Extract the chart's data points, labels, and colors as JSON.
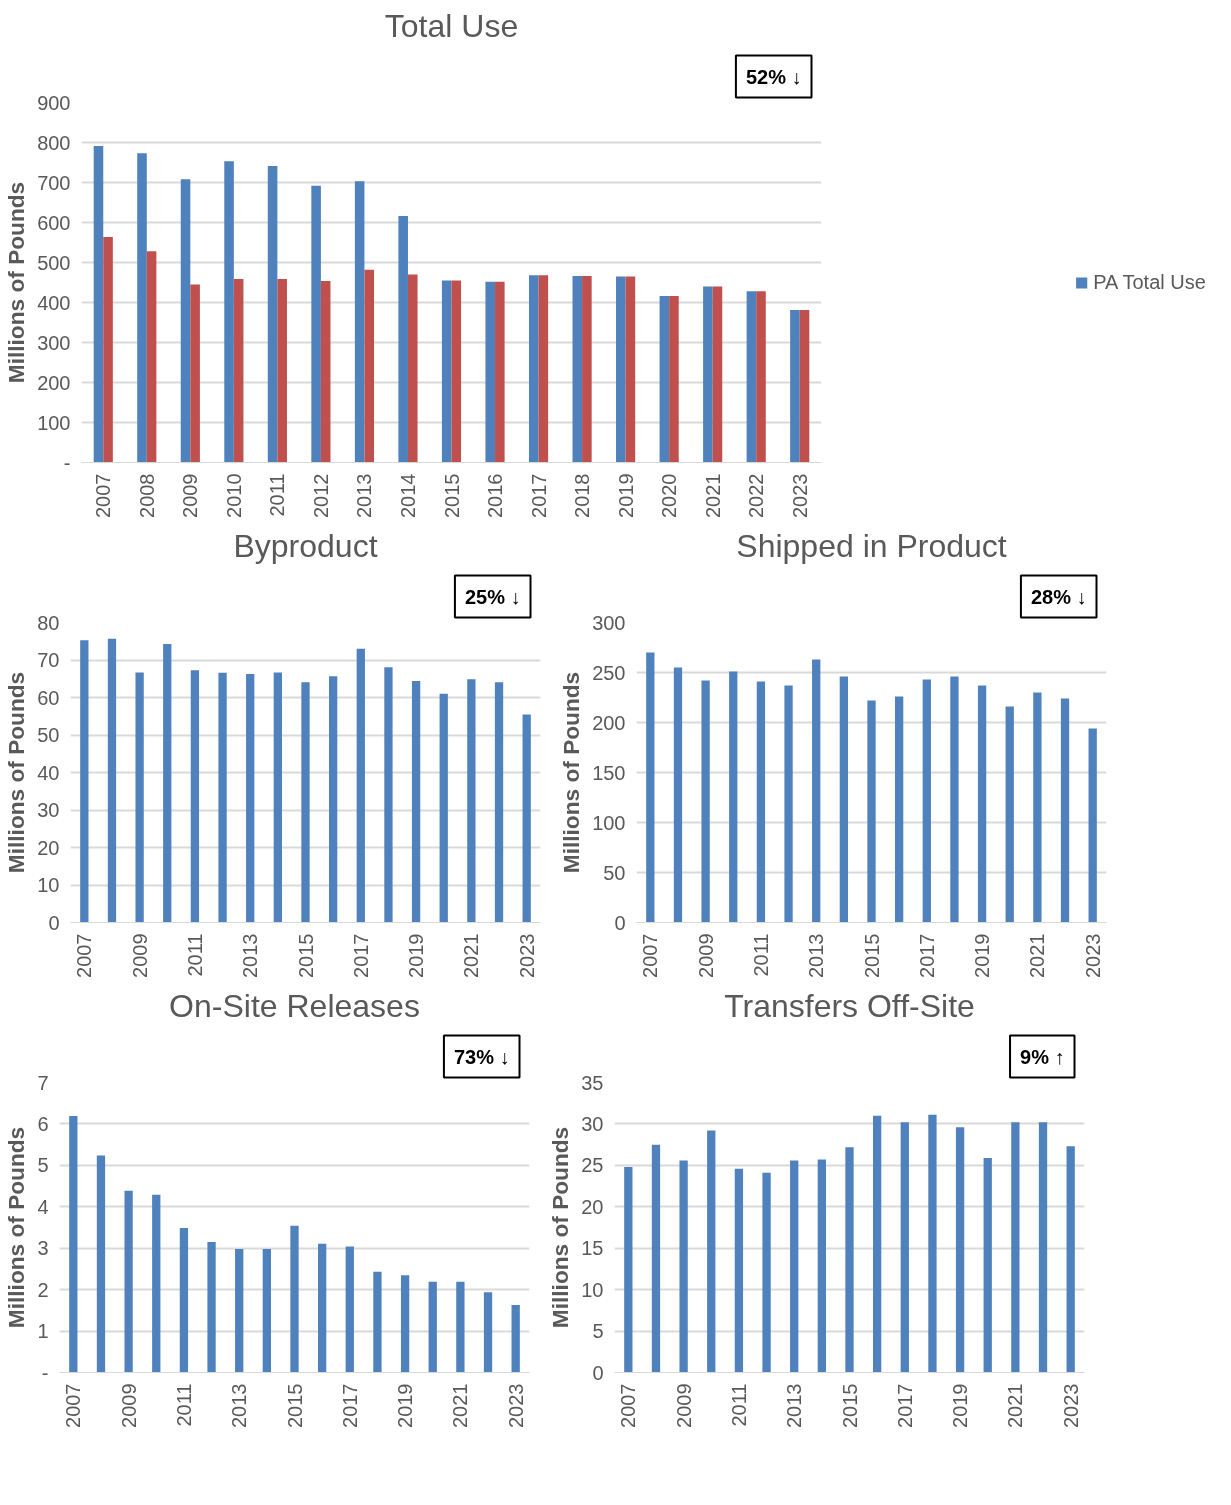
{
  "chart_data": [
    {
      "type": "bar",
      "title": "Total Use",
      "ylabel": "Millions of Pounds",
      "annotations": [
        "52% ↓"
      ],
      "categories": [
        "2007",
        "2008",
        "2009",
        "2010",
        "2011",
        "2012",
        "2013",
        "2014",
        "2015",
        "2016",
        "2017",
        "2018",
        "2019",
        "2020",
        "2021",
        "2022",
        "2023"
      ],
      "series": [
        {
          "name": "PA Total Use",
          "color": "#4f81bd",
          "values": [
            791,
            773,
            708,
            753,
            741,
            692,
            703,
            616,
            455,
            452,
            468,
            466,
            465,
            416,
            440,
            428,
            381
          ]
        },
        {
          "color": "#c0504d",
          "values": [
            564,
            528,
            445,
            459,
            459,
            454,
            482,
            470,
            455,
            452,
            468,
            466,
            465,
            416,
            440,
            428,
            381
          ]
        }
      ],
      "ylim": [
        0,
        900
      ],
      "yticks": [
        {
          "value": 0,
          "label": "-"
        },
        100,
        200,
        300,
        400,
        500,
        600,
        700,
        800,
        900
      ],
      "grid": "y",
      "legend": "right"
    },
    {
      "type": "bar",
      "title": "Byproduct",
      "ylabel": "Millions of Pounds",
      "annotations": [
        "25% ↓"
      ],
      "categories": [
        "2007",
        null,
        "2009",
        null,
        "2011",
        null,
        "2013",
        null,
        "2015",
        null,
        "2017",
        null,
        "2019",
        null,
        "2021",
        null,
        "2023"
      ],
      "series": [
        {
          "color": "#4f81bd",
          "values": [
            75.3,
            75.7,
            66.7,
            74.3,
            67.3,
            66.6,
            66.3,
            66.7,
            64.1,
            65.7,
            73.0,
            68.1,
            64.4,
            61.0,
            64.9,
            64.1,
            55.5
          ]
        }
      ],
      "ylim": [
        0,
        80
      ],
      "yticks": [
        0,
        10,
        20,
        30,
        40,
        50,
        60,
        70,
        80
      ],
      "grid": "y"
    },
    {
      "type": "bar",
      "title": "Shipped in Product",
      "ylabel": "Millions of Pounds",
      "annotations": [
        "28% ↓"
      ],
      "categories": [
        "2007",
        null,
        "2009",
        null,
        "2011",
        null,
        "2013",
        null,
        "2015",
        null,
        "2017",
        null,
        "2019",
        null,
        "2021",
        null,
        "2023"
      ],
      "series": [
        {
          "color": "#4f81bd",
          "values": [
            270,
            255,
            242,
            251,
            241,
            237,
            263,
            246,
            222,
            226,
            243,
            246,
            237,
            216,
            230,
            224,
            194
          ]
        }
      ],
      "ylim": [
        0,
        300
      ],
      "yticks": [
        0,
        50,
        100,
        150,
        200,
        250,
        300
      ],
      "grid": "y"
    },
    {
      "type": "bar",
      "title": "On-Site Releases",
      "ylabel": "Millions of Pounds",
      "annotations": [
        "73% ↓"
      ],
      "categories": [
        "2007",
        null,
        "2009",
        null,
        "2011",
        null,
        "2013",
        null,
        "2015",
        null,
        "2017",
        null,
        "2019",
        null,
        "2021",
        null,
        "2023"
      ],
      "series": [
        {
          "color": "#4f81bd",
          "values": [
            6.19,
            5.24,
            4.39,
            4.29,
            3.49,
            3.15,
            2.98,
            2.98,
            3.54,
            3.11,
            3.04,
            2.43,
            2.35,
            2.19,
            2.19,
            1.94,
            1.63
          ]
        }
      ],
      "ylim": [
        0,
        7
      ],
      "yticks": [
        {
          "value": 0,
          "label": "-"
        },
        1,
        2,
        3,
        4,
        5,
        6,
        7
      ],
      "grid": "y"
    },
    {
      "type": "bar",
      "title": "Transfers Off-Site",
      "ylabel": "Millions of Pounds",
      "annotations": [
        "9% ↑"
      ],
      "categories": [
        "2007",
        null,
        "2009",
        null,
        "2011",
        null,
        "2013",
        null,
        "2015",
        null,
        "2017",
        null,
        "2019",
        null,
        "2021",
        null,
        "2023"
      ],
      "series": [
        {
          "color": "#4f81bd",
          "values": [
            24.8,
            27.5,
            25.6,
            29.2,
            24.6,
            24.1,
            25.6,
            25.7,
            27.2,
            31.0,
            30.2,
            31.1,
            29.6,
            25.9,
            30.2,
            30.2,
            27.3
          ]
        }
      ],
      "ylim": [
        0,
        35
      ],
      "yticks": [
        0,
        5,
        10,
        15,
        20,
        25,
        30,
        35
      ],
      "grid": "y"
    }
  ]
}
